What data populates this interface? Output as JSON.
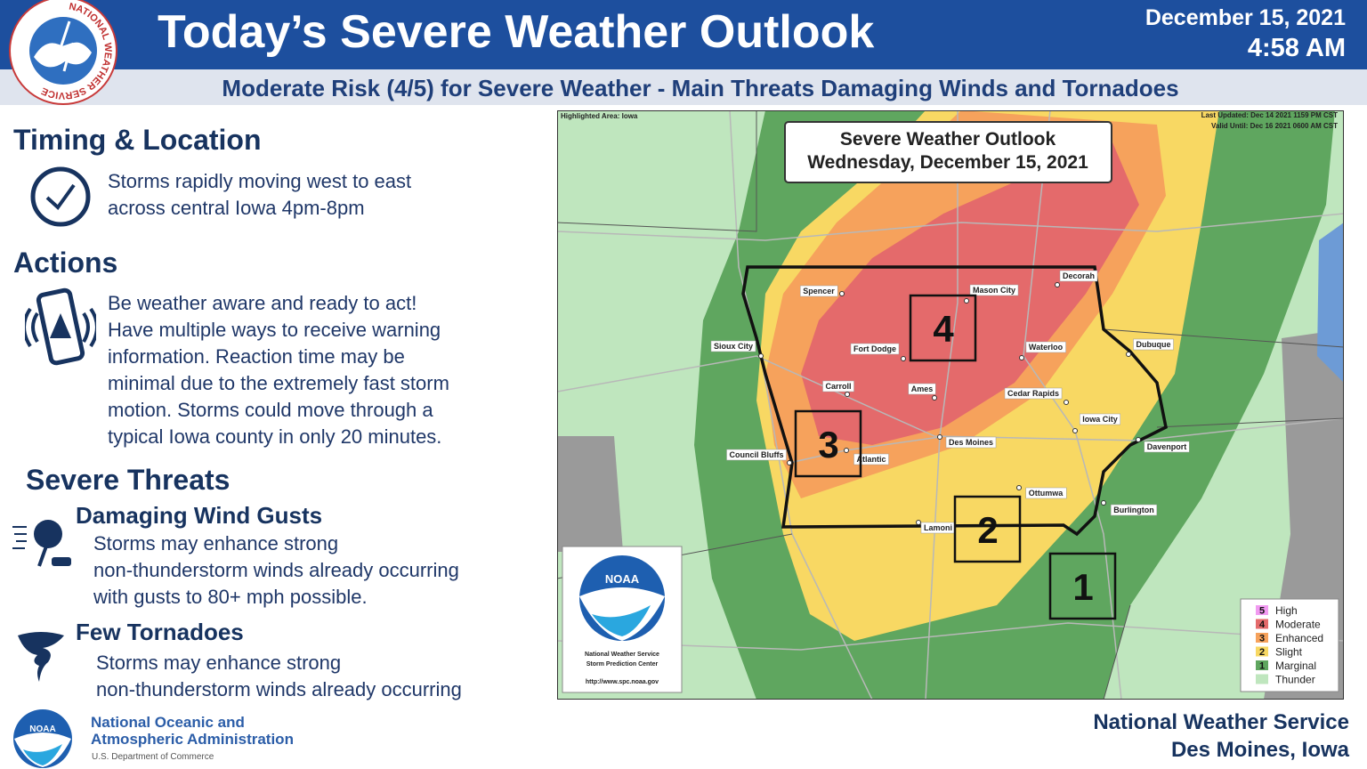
{
  "header": {
    "logo_text": "NATIONAL WEATHER SERVICE",
    "title": "Today’s Severe Weather Outlook",
    "date": "December 15, 2021",
    "time": "4:58 AM",
    "subtitle": "Moderate Risk (4/5) for Severe Weather - Main Threats Damaging Winds and Tornadoes"
  },
  "timing": {
    "heading": "Timing & Location",
    "lines": [
      "Storms rapidly moving west to east",
      "across central Iowa 4pm-8pm"
    ]
  },
  "actions": {
    "heading": "Actions",
    "lines": [
      "Be weather aware and ready to act!",
      "Have multiple ways to receive warning",
      "information.  Reaction time may be",
      "minimal due to the extremely fast storm",
      "motion. Storms could move through a",
      "typical Iowa county in only 20 minutes."
    ]
  },
  "threats": {
    "heading": "Severe Threats",
    "items": [
      {
        "title": "Damaging Wind Gusts",
        "lines": [
          "Storms may enhance strong",
          "non-thunderstorm winds already occurring",
          "with gusts to 80+ mph possible."
        ]
      },
      {
        "title": "Few Tornadoes",
        "lines": [
          "Storms may enhance strong",
          "non-thunderstorm winds already occurring"
        ]
      }
    ]
  },
  "map": {
    "highlighted_area": "Highlighted Area: Iowa",
    "last_updated": "Last Updated: Dec 14 2021 1159 PM CST",
    "valid_until": "Valid Until: Dec 16 2021 0600 AM CST",
    "title": "Severe Weather Outlook",
    "subtitle": "Wednesday, December 15, 2021",
    "cities": [
      "Spencer",
      "Mason City",
      "Decorah",
      "Sioux City",
      "Fort Dodge",
      "Waterloo",
      "Dubuque",
      "Carroll",
      "Ames",
      "Cedar Rapids",
      "Iowa City",
      "Council Bluffs",
      "Des Moines",
      "Atlantic",
      "Davenport",
      "Ottumwa",
      "Burlington",
      "Lamoni"
    ],
    "risk_boxes": [
      "4",
      "3",
      "2",
      "1"
    ],
    "noaa": {
      "logo_text": "NOAA",
      "name": "National Weather Service",
      "center": "Storm Prediction Center",
      "url": "http://www.spc.noaa.gov"
    },
    "legend": [
      {
        "number": "5",
        "label": "High",
        "color": "#f19af1"
      },
      {
        "number": "4",
        "label": "Moderate",
        "color": "#e46a6b"
      },
      {
        "number": "3",
        "label": "Enhanced",
        "color": "#f6a25c"
      },
      {
        "number": "2",
        "label": "Slight",
        "color": "#f8d863"
      },
      {
        "number": "1",
        "label": "Marginal",
        "color": "#5fa65f"
      },
      {
        "label": "Thunder",
        "color": "#bfe6be"
      }
    ]
  },
  "footer": {
    "noaa_logo": "NOAA",
    "agency_line1": "National Oceanic and",
    "agency_line2": "Atmospheric Administration",
    "department": "U.S. Department of Commerce",
    "office": "National Weather Service",
    "location": "Des Moines, Iowa"
  }
}
